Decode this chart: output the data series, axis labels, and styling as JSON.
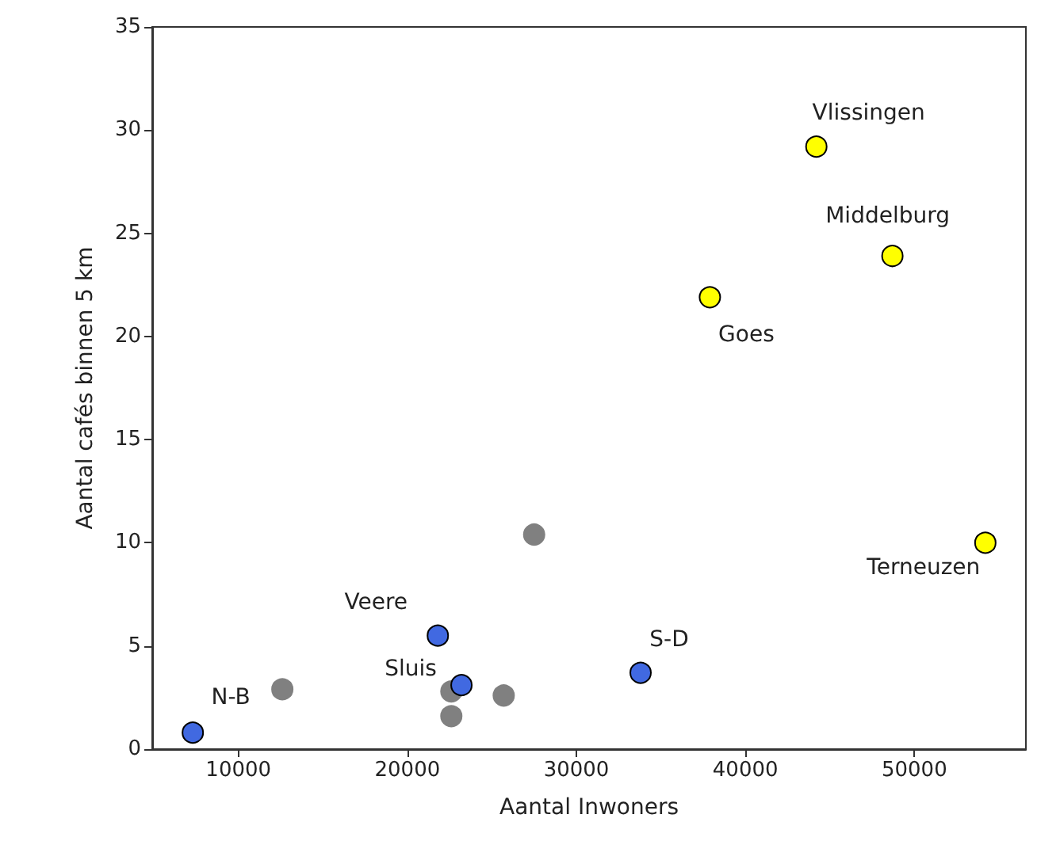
{
  "chart_data": {
    "type": "scatter",
    "xlabel": "Aantal Inwoners",
    "ylabel": "Aantal cafés binnen 5 km",
    "xlim": [
      4900,
      56600
    ],
    "xticks": [
      10000,
      20000,
      30000,
      40000,
      50000
    ],
    "ylim": [
      0,
      35
    ],
    "yticks": [
      0,
      5,
      10,
      15,
      20,
      25,
      30,
      35
    ],
    "grid": false,
    "marker": "circle",
    "series": [
      {
        "color": "#808080",
        "x": [
          12600,
          27500,
          22600,
          22600,
          25700
        ],
        "values": [
          2.9,
          10.4,
          2.8,
          1.6,
          2.6
        ]
      },
      {
        "color": "#ffff00",
        "x": [
          44200,
          48700,
          37900,
          54200
        ],
        "values": [
          29.2,
          23.9,
          21.9,
          10.0
        ]
      },
      {
        "color": "#4169e1",
        "x": [
          7300,
          21800,
          23200,
          33800
        ],
        "values": [
          0.8,
          5.5,
          3.1,
          3.7
        ]
      }
    ],
    "annotations": [
      {
        "text": "Vlissingen",
        "x": 44200,
        "y": 29.2
      },
      {
        "text": "Middelburg",
        "x": 48700,
        "y": 23.9
      },
      {
        "text": "Goes",
        "x": 37900,
        "y": 21.9
      },
      {
        "text": "Terneuzen",
        "x": 54200,
        "y": 10.0
      },
      {
        "text": "Veere",
        "x": 21800,
        "y": 5.5
      },
      {
        "text": "Sluis",
        "x": 23200,
        "y": 3.1
      },
      {
        "text": "S-D",
        "x": 33800,
        "y": 3.7
      },
      {
        "text": "N-B",
        "x": 7300,
        "y": 0.8
      }
    ]
  }
}
